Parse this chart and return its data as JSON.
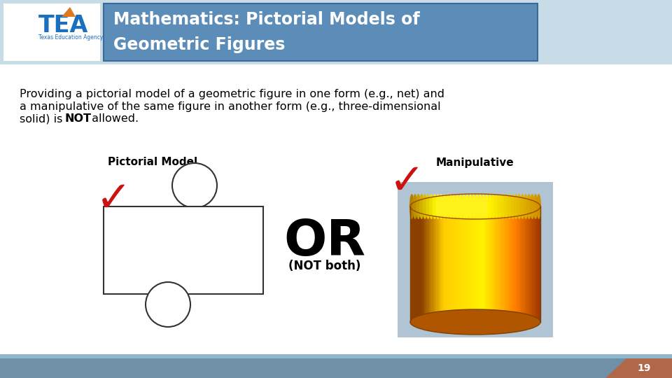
{
  "title_line1": "Mathematics: Pictorial Models of",
  "title_line2": "Geometric Figures",
  "title_bg": "#5b8db8",
  "title_border": "#3a6a9a",
  "body_text_line1": "Providing a pictorial model of a geometric figure in one form (e.g., net) and",
  "body_text_line2": "a manipulative of the same figure in another form (e.g., three-dimensional",
  "body_text_line3_pre": "solid) is ",
  "body_text_bold": "NOT",
  "body_text_line3_post": " allowed.",
  "label_pictorial": "Pictorial Model",
  "label_manipulative": "Manipulative",
  "or_text": "OR",
  "not_both_text": "(NOT both)",
  "page_number": "19",
  "bg_color": "#ffffff",
  "title_text_color": "#ffffff",
  "body_text_color": "#000000",
  "header_stripe_color": "#c8dce8",
  "footer_bg": "#7090a8",
  "footer_accent_color": "#b06848",
  "checkmark_color": "#cc1111",
  "rect_facecolor": "#ffffff",
  "rect_edgecolor": "#333333",
  "ellipse_facecolor": "#ffffff",
  "ellipse_edgecolor": "#333333",
  "cyl_bg": "#b0c4d4",
  "tea_blue": "#1a6fbe",
  "tea_orange": "#e07820"
}
